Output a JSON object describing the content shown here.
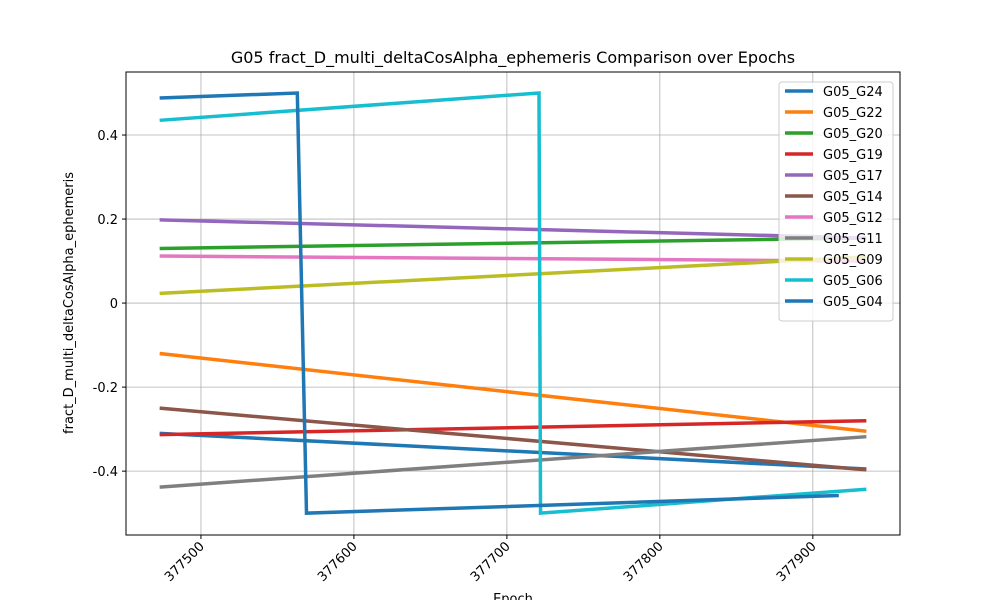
{
  "chart_data": {
    "type": "line",
    "title": "G05 fract_D_multi_deltaCosAlpha_ephemeris Comparison over Epochs",
    "x_label": "Epoch",
    "y_label": "fract_D_multi_deltaCosAlpha_ephemeris",
    "xlim": [
      377451,
      377957
    ],
    "xticks": [
      377500,
      377600,
      377700,
      377800,
      377900
    ],
    "ylim": [
      -0.552,
      0.55
    ],
    "yticks": [
      -0.4,
      -0.2,
      0.0,
      0.2,
      0.4
    ],
    "grid": true,
    "legend": "upper right",
    "series": [
      {
        "name": "G05_G24",
        "color": "#1f77b4",
        "x": [
          377473,
          377935
        ],
        "values": [
          -0.31,
          -0.395
        ]
      },
      {
        "name": "G05_G22",
        "color": "#ff7f0e",
        "x": [
          377473,
          377935
        ],
        "values": [
          -0.12,
          -0.305
        ]
      },
      {
        "name": "G05_G20",
        "color": "#2ca02c",
        "x": [
          377473,
          377935
        ],
        "values": [
          0.13,
          0.155
        ]
      },
      {
        "name": "G05_G19",
        "color": "#d62728",
        "x": [
          377473,
          377935
        ],
        "values": [
          -0.313,
          -0.28
        ]
      },
      {
        "name": "G05_G17",
        "color": "#9467bd",
        "x": [
          377473,
          377935
        ],
        "values": [
          0.198,
          0.155
        ]
      },
      {
        "name": "G05_G14",
        "color": "#8c564b",
        "x": [
          377473,
          377935
        ],
        "values": [
          -0.25,
          -0.397
        ]
      },
      {
        "name": "G05_G12",
        "color": "#e377c2",
        "x": [
          377473,
          377935
        ],
        "values": [
          0.112,
          0.1
        ]
      },
      {
        "name": "G05_G11",
        "color": "#7f7f7f",
        "x": [
          377473,
          377935
        ],
        "values": [
          -0.438,
          -0.318
        ]
      },
      {
        "name": "G05_G09",
        "color": "#bcbd22",
        "x": [
          377473,
          377935
        ],
        "values": [
          0.023,
          0.11
        ]
      },
      {
        "name": "G05_G06",
        "color": "#17becf",
        "x": [
          377473,
          377721,
          377722,
          377935
        ],
        "values": [
          0.435,
          0.5,
          -0.5,
          -0.443
        ]
      },
      {
        "name": "G05_G04",
        "color": "#1f77b4",
        "x": [
          377473,
          377563,
          377569,
          377917
        ],
        "values": [
          0.488,
          0.5,
          -0.5,
          -0.458
        ]
      }
    ]
  }
}
